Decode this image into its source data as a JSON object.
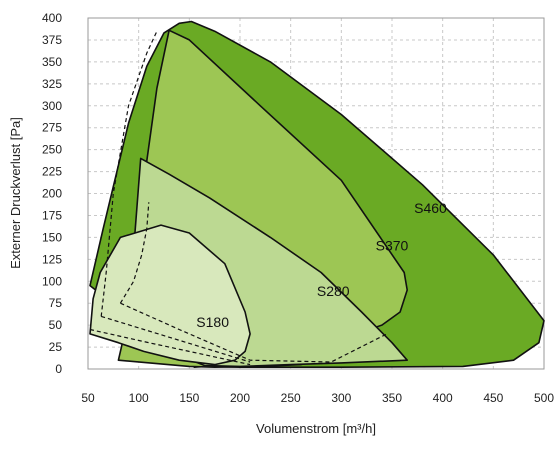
{
  "chart_data": {
    "type": "area",
    "title": "",
    "xlabel": "Volumenstrom [m³/h]",
    "ylabel": "Externer Druckverlust [Pa]",
    "xlim": [
      50,
      500
    ],
    "ylim": [
      0,
      400
    ],
    "xticks": [
      50,
      100,
      150,
      200,
      250,
      300,
      350,
      400,
      450,
      500
    ],
    "yticks": [
      0,
      25,
      50,
      75,
      100,
      125,
      150,
      175,
      200,
      225,
      250,
      275,
      300,
      325,
      350,
      375,
      400
    ],
    "grid": true,
    "series": [
      {
        "name": "S460",
        "color": "#6aaa24",
        "label_at": [
          388,
          178
        ],
        "points": [
          [
            52,
            95
          ],
          [
            65,
            160
          ],
          [
            90,
            280
          ],
          [
            108,
            345
          ],
          [
            125,
            383
          ],
          [
            140,
            394
          ],
          [
            152,
            396
          ],
          [
            175,
            385
          ],
          [
            230,
            350
          ],
          [
            300,
            290
          ],
          [
            380,
            210
          ],
          [
            450,
            130
          ],
          [
            500,
            55
          ],
          [
            495,
            30
          ],
          [
            470,
            10
          ],
          [
            420,
            3
          ],
          [
            300,
            2
          ],
          [
            200,
            2
          ],
          [
            165,
            3
          ],
          [
            155,
            2
          ]
        ]
      },
      {
        "name": "S370",
        "color": "#9dc654",
        "label_at": [
          350,
          135
        ],
        "points": [
          [
            80,
            10
          ],
          [
            88,
            50
          ],
          [
            97,
            120
          ],
          [
            106,
            220
          ],
          [
            118,
            320
          ],
          [
            130,
            386
          ],
          [
            150,
            375
          ],
          [
            220,
            300
          ],
          [
            300,
            215
          ],
          [
            362,
            110
          ],
          [
            365,
            90
          ],
          [
            358,
            65
          ],
          [
            340,
            50
          ],
          [
            320,
            42
          ],
          [
            300,
            30
          ],
          [
            290,
            12
          ],
          [
            260,
            5
          ],
          [
            220,
            3
          ],
          [
            175,
            2
          ],
          [
            150,
            3
          ]
        ]
      },
      {
        "name": "S280",
        "color": "#bcd992",
        "label_at": [
          292,
          83
        ],
        "points": [
          [
            87,
            70
          ],
          [
            96,
            150
          ],
          [
            102,
            240
          ],
          [
            130,
            222
          ],
          [
            170,
            195
          ],
          [
            230,
            150
          ],
          [
            280,
            110
          ],
          [
            320,
            65
          ],
          [
            350,
            30
          ],
          [
            365,
            10
          ],
          [
            300,
            7
          ],
          [
            250,
            5
          ],
          [
            200,
            3
          ],
          [
            165,
            4
          ],
          [
            120,
            25
          ],
          [
            100,
            45
          ]
        ]
      },
      {
        "name": "S180",
        "color": "#d8e8bc",
        "label_at": [
          173,
          48
        ],
        "points": [
          [
            52,
            40
          ],
          [
            55,
            80
          ],
          [
            62,
            110
          ],
          [
            82,
            150
          ],
          [
            122,
            164
          ],
          [
            150,
            155
          ],
          [
            185,
            120
          ],
          [
            205,
            65
          ],
          [
            210,
            40
          ],
          [
            205,
            20
          ],
          [
            195,
            10
          ],
          [
            175,
            5
          ],
          [
            140,
            10
          ],
          [
            105,
            20
          ],
          [
            80,
            30
          ]
        ]
      }
    ],
    "dashed_outlines": [
      [
        [
          63,
          60
        ],
        [
          68,
          110
        ],
        [
          75,
          200
        ],
        [
          90,
          300
        ],
        [
          108,
          360
        ],
        [
          118,
          385
        ]
      ],
      [
        [
          63,
          60
        ],
        [
          210,
          8
        ]
      ],
      [
        [
          82,
          75
        ],
        [
          95,
          100
        ],
        [
          103,
          130
        ],
        [
          108,
          160
        ],
        [
          110,
          190
        ]
      ],
      [
        [
          82,
          75
        ],
        [
          140,
          45
        ],
        [
          210,
          10
        ],
        [
          290,
          8
        ],
        [
          345,
          40
        ]
      ],
      [
        [
          52,
          45
        ],
        [
          110,
          30
        ],
        [
          170,
          15
        ],
        [
          210,
          5
        ]
      ]
    ]
  }
}
